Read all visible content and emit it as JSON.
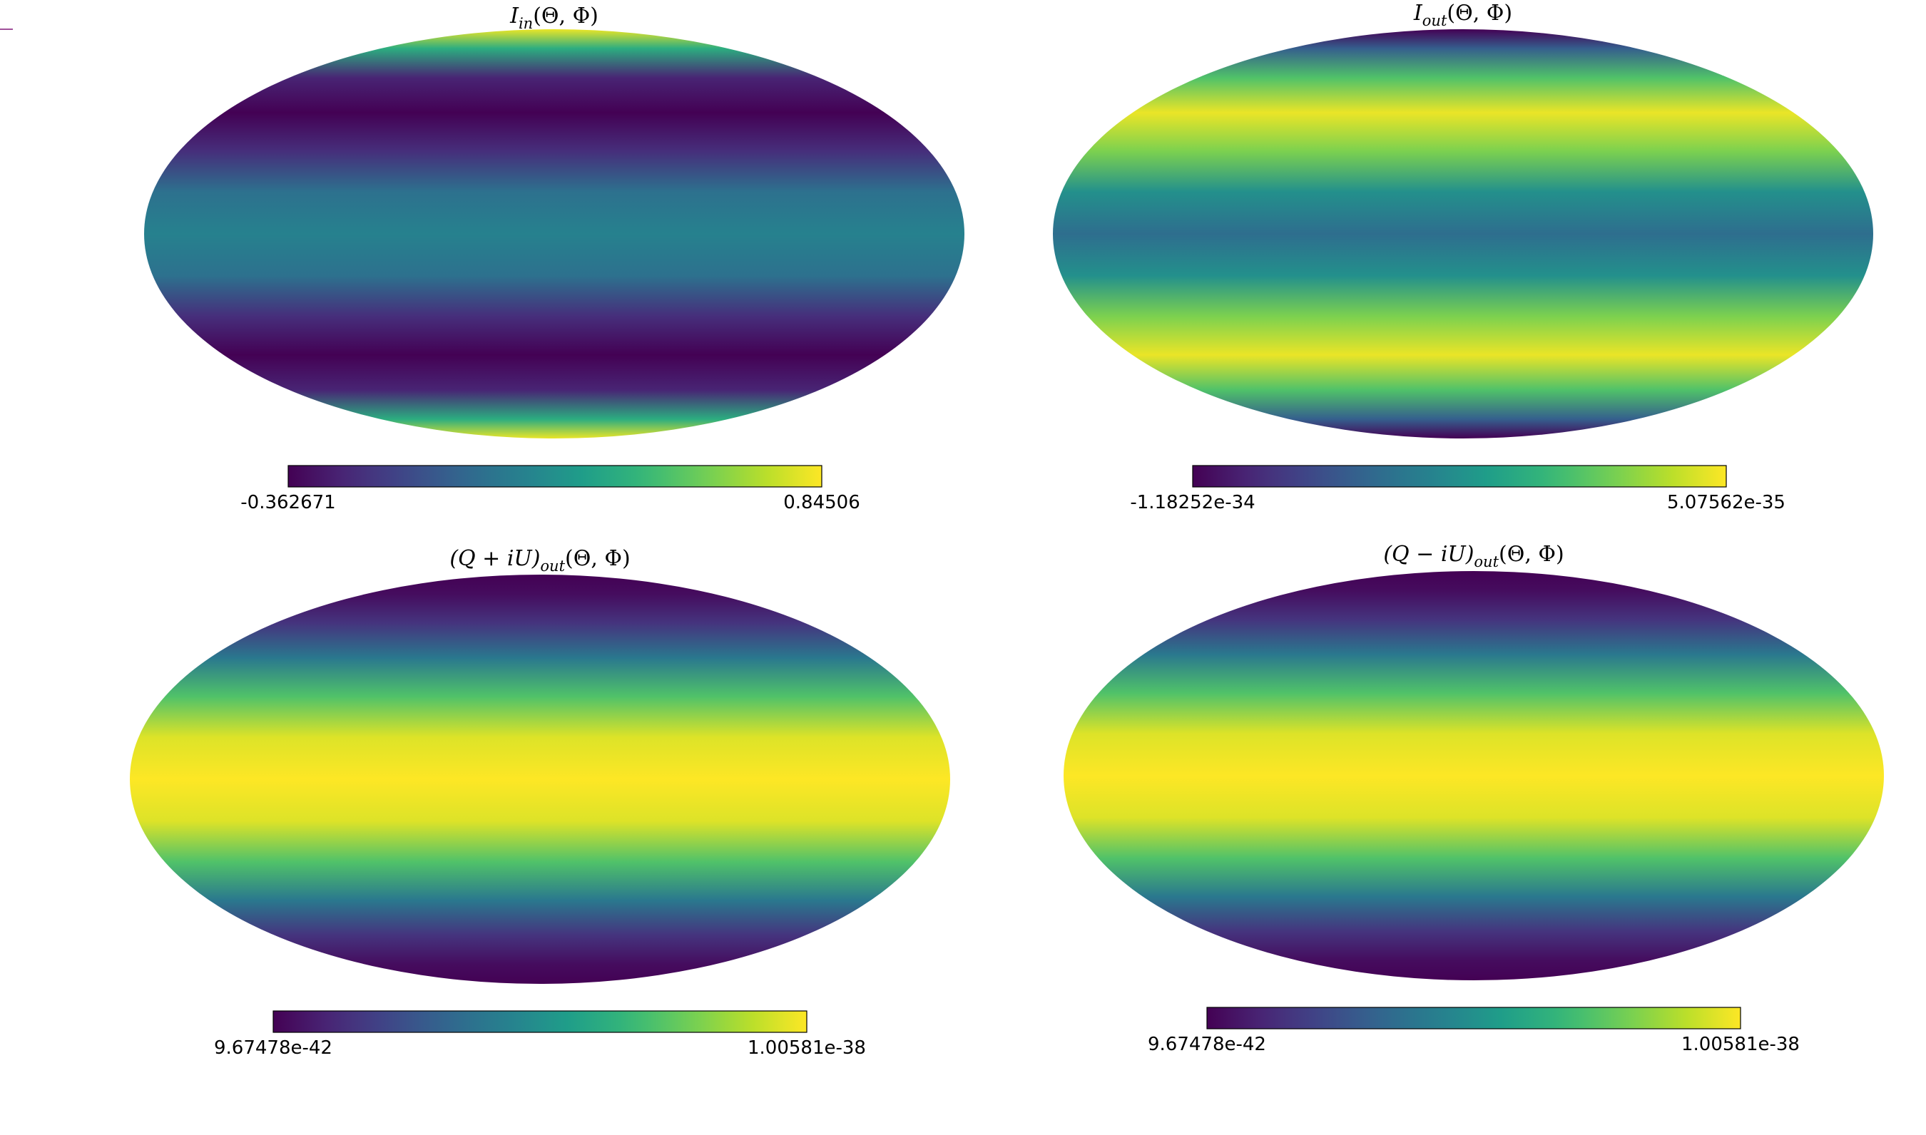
{
  "colors": {
    "viridis": [
      "#440154",
      "#482878",
      "#3e4989",
      "#31688e",
      "#26828e",
      "#1f9e89",
      "#35b779",
      "#6ece58",
      "#b5de2b",
      "#fde725"
    ],
    "background": "#ffffff",
    "stray_mark": "#a0509a"
  },
  "chart_data": [
    {
      "type": "heatmap",
      "projection": "mollweide",
      "title_main": "I",
      "title_sub": "in",
      "title_tail": "(Θ, Φ)",
      "colorbar": {
        "min_label": "-0.362671",
        "max_label": "0.84506",
        "min": -0.362671,
        "max": 0.84506
      },
      "latitude_profile": {
        "lat_deg": [
          90,
          75,
          60,
          45,
          30,
          15,
          0,
          -15,
          -30,
          -45,
          -60,
          -75,
          -90
        ],
        "level": [
          0.97,
          0.62,
          0.1,
          0.0,
          0.13,
          0.37,
          0.44,
          0.37,
          0.13,
          0.0,
          0.1,
          0.62,
          0.97
        ]
      }
    },
    {
      "type": "heatmap",
      "projection": "mollweide",
      "title_main": "I",
      "title_sub": "out",
      "title_tail": "(Θ, Φ)",
      "colorbar": {
        "min_label": "-1.18252e-34",
        "max_label": "5.07562e-35",
        "min": -1.18252e-34,
        "max": 5.07562e-35
      },
      "latitude_profile": {
        "lat_deg": [
          90,
          75,
          60,
          45,
          30,
          15,
          0,
          -15,
          -30,
          -45,
          -60,
          -75,
          -90
        ],
        "level": [
          0.0,
          0.3,
          0.72,
          0.97,
          0.8,
          0.5,
          0.36,
          0.5,
          0.8,
          0.97,
          0.72,
          0.3,
          0.0
        ]
      }
    },
    {
      "type": "heatmap",
      "projection": "mollweide",
      "title_main": "(Q + iU)",
      "title_sub": "out",
      "title_tail": "(Θ, Φ)",
      "colorbar": {
        "min_label": "9.67478e-42",
        "max_label": "1.00581e-38",
        "min": 9.67478e-42,
        "max": 1.00581e-38
      },
      "latitude_profile": {
        "lat_deg": [
          90,
          75,
          60,
          45,
          30,
          15,
          0,
          -15,
          -30,
          -45,
          -60,
          -75,
          -90
        ],
        "level": [
          0.0,
          0.03,
          0.15,
          0.4,
          0.72,
          0.95,
          1.0,
          0.95,
          0.72,
          0.4,
          0.15,
          0.03,
          0.0
        ]
      }
    },
    {
      "type": "heatmap",
      "projection": "mollweide",
      "title_main": "(Q − iU)",
      "title_sub": "out",
      "title_tail": "(Θ, Φ)",
      "colorbar": {
        "min_label": "9.67478e-42",
        "max_label": "1.00581e-38",
        "min": 9.67478e-42,
        "max": 1.00581e-38
      },
      "latitude_profile": {
        "lat_deg": [
          90,
          75,
          60,
          45,
          30,
          15,
          0,
          -15,
          -30,
          -45,
          -60,
          -75,
          -90
        ],
        "level": [
          0.0,
          0.03,
          0.15,
          0.4,
          0.72,
          0.95,
          1.0,
          0.95,
          0.72,
          0.4,
          0.15,
          0.03,
          0.0
        ]
      }
    }
  ]
}
